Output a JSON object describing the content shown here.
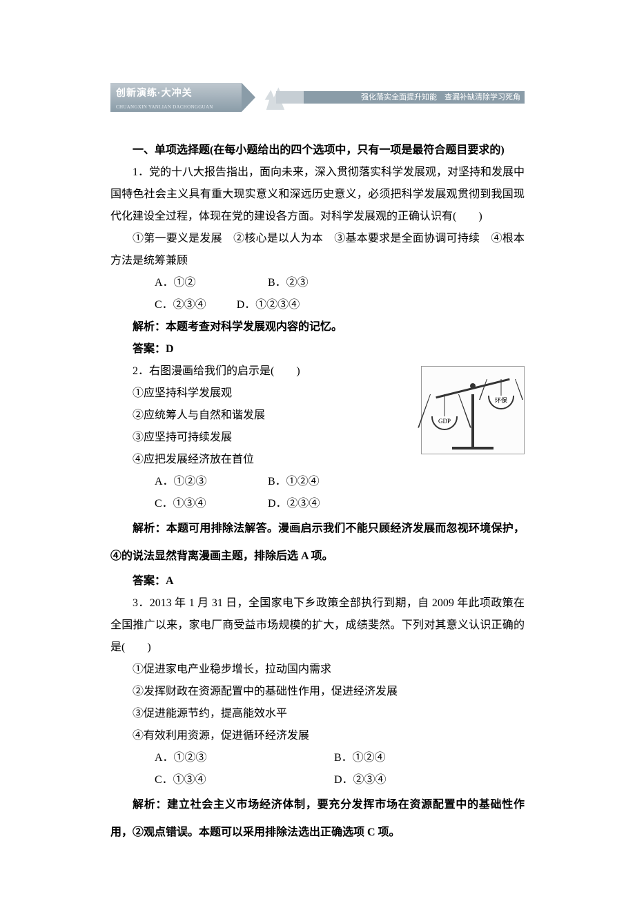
{
  "banner": {
    "left_title": "创新演练·大冲关",
    "left_sub": "CHUANGXIN YANLIAN DACHONGGUAN",
    "right_text": "强化落实全面提升知能　查漏补缺清除学习死角"
  },
  "heading": "一、单项选择题(在每小题给出的四个选项中，只有一项是最符合题目要求的)",
  "q1": {
    "stem": "1．党的十八大报告指出，面向未来，深入贯彻落实科学发展观，对坚持和发展中国特色社会主义具有重大现实意义和深远历史意义，必须把科学发展观贯彻到我国现代化建设全过程，体现在党的建设各方面。对科学发展观的正确认识有(　　)",
    "items": "①第一要义是发展　②核心是以人为本　③基本要求是全面协调可持续　④根本方法是统筹兼顾",
    "opt_a": "A．①②",
    "opt_b": "B．②③",
    "opt_c": "C．②③④",
    "opt_d": "D．①②③④",
    "explain": "解析：本题考查对科学发展观内容的记忆。",
    "answer": "答案：D"
  },
  "q2": {
    "stem": "2．右图漫画给我们的启示是(　　)",
    "i1": "①应坚持科学发展观",
    "i2": "②应统筹人与自然和谐发展",
    "i3": "③应坚持可持续发展",
    "i4": "④应把发展经济放在首位",
    "opt_a": "A．①②③",
    "opt_b": "B．①②④",
    "opt_c": "C．①③④",
    "opt_d": "D．②③④",
    "explain": "解析：本题可用排除法解答。漫画启示我们不能只顾经济发展而忽视环境保护，④的说法显然背离漫画主题，排除后选 A 项。",
    "answer": "答案：A",
    "image": {
      "left_label": "GDP",
      "right_label": "环保"
    }
  },
  "q3": {
    "stem": "3．2013 年 1 月 31 日，全国家电下乡政策全部执行到期，自 2009 年此项政策在全国推广以来，家电厂商受益市场规模的扩大，成绩斐然。下列对其意义认识正确的是(　　)",
    "i1": "①促进家电产业稳步增长，拉动国内需求",
    "i2": "②发挥财政在资源配置中的基础性作用，促进经济发展",
    "i3": "③促进能源节约，提高能效水平",
    "i4": "④有效利用资源，促进循环经济发展",
    "opt_a": "A．①②③",
    "opt_b": "B．①②④",
    "opt_c": "C．①③④",
    "opt_d": "D．②③④",
    "explain": "解析：建立社会主义市场经济体制，要充分发挥市场在资源配置中的基础性作用，②观点错误。本题可以采用排除法选出正确选项 C 项。"
  }
}
